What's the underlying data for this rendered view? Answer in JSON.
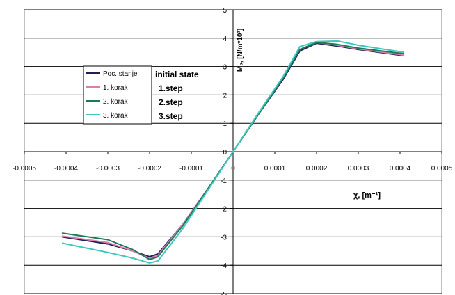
{
  "chart_data": {
    "type": "line",
    "title": "",
    "xlabel": "χ, [m⁻¹]",
    "ylabel": "M₀, [N/m*10³]",
    "xlim": [
      -0.0005,
      0.0005
    ],
    "ylim": [
      -5,
      5
    ],
    "x_ticks": [
      "-0.0005",
      "-0.0004",
      "-0.0003",
      "-0.0002",
      "-0.0001",
      "0",
      "0.0001",
      "0.0002",
      "0.0003",
      "0.0004",
      "0.0005"
    ],
    "y_ticks": [
      "5",
      "4",
      "3",
      "2",
      "1",
      "0",
      "-1",
      "-2",
      "-3",
      "-4",
      "-5"
    ],
    "grid": "horizontal",
    "legend_position": "left",
    "series": [
      {
        "name": "Poc. stanje",
        "color": "#1f1f5a",
        "x": [
          -0.00041,
          -0.0003,
          -0.00024,
          -0.0002,
          -0.00018,
          -0.00012,
          -6e-05,
          0,
          6e-05,
          0.00012,
          0.00016,
          0.0002,
          0.00025,
          0.0003,
          0.00041
        ],
        "y": [
          -3.0,
          -3.25,
          -3.5,
          -3.7,
          -3.6,
          -2.55,
          -1.3,
          0,
          1.3,
          2.55,
          3.55,
          3.82,
          3.72,
          3.6,
          3.38
        ]
      },
      {
        "name": "1. korak",
        "color": "#d87fb0",
        "x": [
          -0.00041,
          -0.0003,
          -0.00024,
          -0.0002,
          -0.00018,
          -0.00012,
          -6e-05,
          0,
          6e-05,
          0.00012,
          0.00016,
          0.0002,
          0.00025,
          0.0003,
          0.00041
        ],
        "y": [
          -2.97,
          -3.2,
          -3.5,
          -3.75,
          -3.65,
          -2.55,
          -1.3,
          0,
          1.3,
          2.6,
          3.6,
          3.85,
          3.75,
          3.62,
          3.4
        ]
      },
      {
        "name": "2. korak",
        "color": "#1e7a55",
        "x": [
          -0.00041,
          -0.0003,
          -0.00024,
          -0.0002,
          -0.00018,
          -0.00012,
          -6e-05,
          0,
          6e-05,
          0.00012,
          0.00016,
          0.0002,
          0.00025,
          0.0003,
          0.00041
        ],
        "y": [
          -2.87,
          -3.1,
          -3.45,
          -3.8,
          -3.7,
          -2.6,
          -1.3,
          0,
          1.3,
          2.6,
          3.6,
          3.85,
          3.78,
          3.65,
          3.45
        ]
      },
      {
        "name": "3. korak",
        "color": "#3cc8c0",
        "x": [
          -0.00041,
          -0.0003,
          -0.00024,
          -0.0002,
          -0.00018,
          -0.00012,
          -6e-05,
          0,
          6e-05,
          0.00012,
          0.00016,
          0.0002,
          0.00025,
          0.0003,
          0.00041
        ],
        "y": [
          -3.22,
          -3.55,
          -3.75,
          -3.92,
          -3.85,
          -2.7,
          -1.35,
          0,
          1.35,
          2.65,
          3.7,
          3.88,
          3.9,
          3.75,
          3.5
        ]
      }
    ],
    "annotations": [
      "initial state",
      "1.step",
      "2.step",
      "3.step"
    ]
  }
}
